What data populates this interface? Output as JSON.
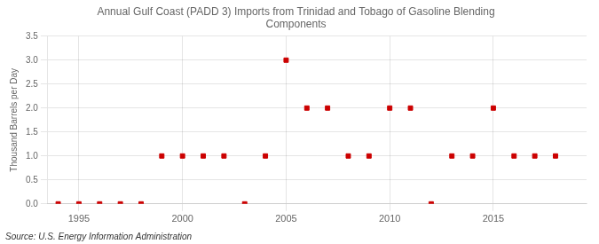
{
  "chart_data": {
    "type": "scatter",
    "title": "Annual Gulf Coast (PADD 3) Imports from Trinidad and Tobago of Gasoline Blending\nComponents",
    "ylabel": "Thousand Barrels per Day",
    "annotation": "Source: U.S. Energy Information Administration",
    "x": [
      1994,
      1995,
      1996,
      1997,
      1998,
      1999,
      2000,
      2001,
      2002,
      2003,
      2004,
      2005,
      2006,
      2007,
      2008,
      2009,
      2010,
      2011,
      2012,
      2013,
      2014,
      2015,
      2016,
      2017,
      2018
    ],
    "values": [
      0,
      0,
      0,
      0,
      0,
      1,
      1,
      1,
      1,
      0,
      1,
      3,
      2,
      2,
      1,
      1,
      2,
      2,
      0,
      1,
      1,
      2,
      1,
      1,
      1
    ],
    "color": "#cc0000",
    "marker": "square",
    "xlim": [
      1993.5,
      2019.5
    ],
    "ylim": [
      0,
      3.5
    ],
    "xticks": [
      1995,
      2000,
      2005,
      2010,
      2015
    ],
    "yticks": [
      {
        "value": 0,
        "label": "0.0"
      },
      0.5,
      {
        "value": 1,
        "label": "1.0"
      },
      1.5,
      {
        "value": 2,
        "label": "2.0"
      },
      2.5,
      {
        "value": 3,
        "label": "3.0"
      },
      3.5
    ],
    "grid": true
  }
}
